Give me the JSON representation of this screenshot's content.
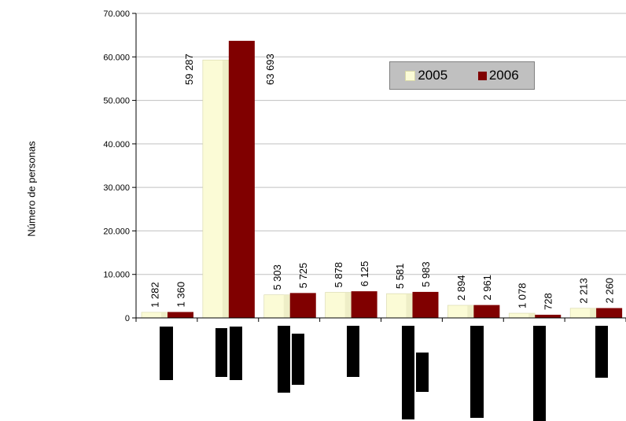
{
  "chart_data": {
    "type": "bar",
    "title": "",
    "ylabel": "Número de personas",
    "ylim": [
      0,
      70000
    ],
    "yticks": [
      "0",
      "10.000",
      "20.000",
      "30.000",
      "40.000",
      "50.000",
      "60.000",
      "70.000"
    ],
    "categories": [
      "",
      "",
      "",
      "",
      "",
      "",
      "",
      ""
    ],
    "series": [
      {
        "name": "2005",
        "color": "#fbfbd6",
        "values": [
          1282,
          59287,
          5303,
          5878,
          5581,
          2894,
          1078,
          2213
        ],
        "labels": [
          "1 282",
          "59 287",
          "5 303",
          "5 878",
          "5 581",
          "2 894",
          "1 078",
          "2 213"
        ]
      },
      {
        "name": "2006",
        "color": "#800000",
        "values": [
          1360,
          63693,
          5725,
          6125,
          5983,
          2961,
          728,
          2260
        ],
        "labels": [
          "1 360",
          "63 693",
          "5 725",
          "6 125",
          "5 983",
          "2 961",
          "728",
          "2 260"
        ]
      }
    ],
    "grid": true,
    "legend_position": "top-right"
  }
}
